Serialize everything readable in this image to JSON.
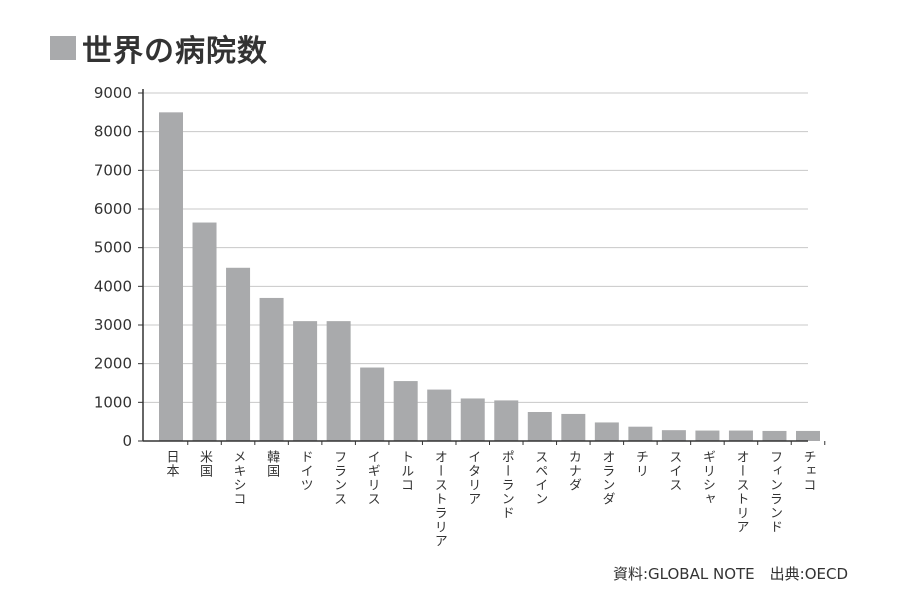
{
  "title": "世界の病院数",
  "source_text": "資料:GLOBAL NOTE　出典:OECD",
  "chart_data": {
    "type": "bar",
    "title": "世界の病院数",
    "xlabel": "",
    "ylabel": "",
    "ylim": [
      0,
      9000
    ],
    "yticks": [
      0,
      1000,
      2000,
      3000,
      4000,
      5000,
      6000,
      7000,
      8000,
      9000
    ],
    "grid": true,
    "bar_color": "#a9aaac",
    "categories": [
      "日本",
      "米国",
      "メキシコ",
      "韓国",
      "ドイツ",
      "フランス",
      "イギリス",
      "トルコ",
      "オーストラリア",
      "イタリア",
      "ポーランド",
      "スペイン",
      "カナダ",
      "オランダ",
      "チリ",
      "スイス",
      "ギリシャ",
      "オーストリア",
      "フィンランド",
      "チェコ"
    ],
    "values": [
      8500,
      5650,
      4480,
      3700,
      3100,
      3100,
      1900,
      1550,
      1330,
      1100,
      1050,
      750,
      700,
      480,
      370,
      280,
      270,
      270,
      260,
      260
    ]
  }
}
